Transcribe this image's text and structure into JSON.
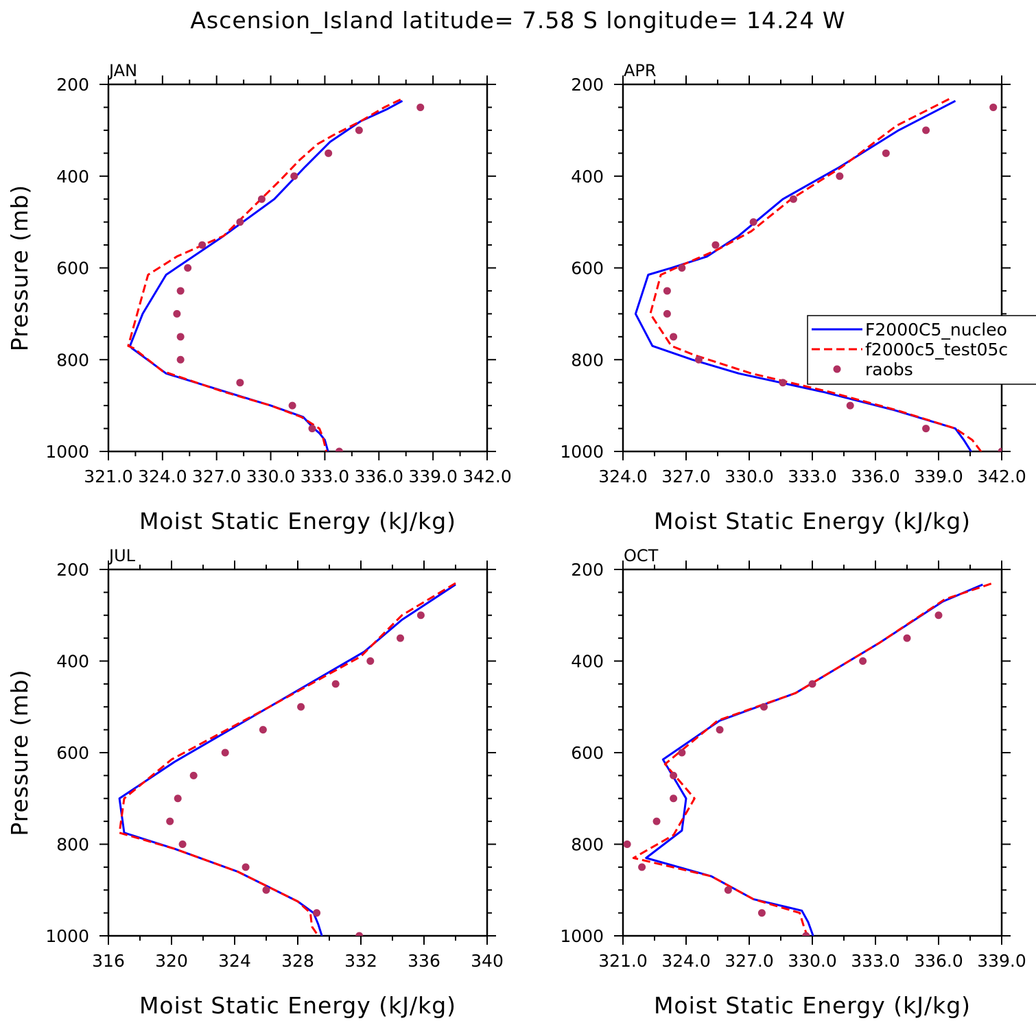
{
  "title": "Ascension_Island   latitude= 7.58 S longitude= 14.24 W",
  "colors": {
    "model1": "#0000ff",
    "model2": "#ff0000",
    "obs": "#b03060",
    "axis": "#000000"
  },
  "legend": {
    "items": [
      {
        "label": "F2000C5_nucleo",
        "style": "solid",
        "color": "#0000ff"
      },
      {
        "label": "f2000c5_test05c",
        "style": "dashed",
        "color": "#ff0000"
      },
      {
        "label": "raobs",
        "style": "marker",
        "color": "#b03060"
      }
    ]
  },
  "chart_data": [
    {
      "type": "line",
      "panel": "JAN",
      "title": "JAN",
      "xlabel": "Moist Static Energy (kJ/kg)",
      "ylabel": "Pressure (mb)",
      "xlim": [
        321.0,
        342.0
      ],
      "ylim": [
        1000,
        200
      ],
      "y_reversed": true,
      "x_ticks": [
        321.0,
        324.0,
        327.0,
        330.0,
        333.0,
        336.0,
        339.0,
        342.0
      ],
      "x_tick_labels": [
        "321.0",
        "324.0",
        "327.0",
        "330.0",
        "333.0",
        "336.0",
        "339.0",
        "342.0"
      ],
      "y_ticks": [
        200,
        400,
        600,
        800,
        1000
      ],
      "y_tick_labels": [
        "200",
        "400",
        "600",
        "800",
        "1000"
      ],
      "series": [
        {
          "name": "F2000C5_nucleo",
          "style": "solid",
          "x": [
            337.3,
            336.4,
            335.0,
            333.3,
            331.9,
            330.2,
            327.4,
            324.2,
            322.9,
            322.2,
            322.3,
            324.2,
            327.5,
            330.0,
            331.8,
            332.4,
            332.7,
            333.0,
            333.2
          ],
          "y": [
            236,
            255,
            280,
            325,
            380,
            450,
            530,
            615,
            700,
            770,
            775,
            830,
            870,
            900,
            925,
            950,
            960,
            975,
            1003
          ]
        },
        {
          "name": "f2000c5_test05c",
          "style": "dashed",
          "x": [
            337.2,
            336.3,
            335.0,
            333.5,
            332.6,
            331.6,
            330.5,
            327.4,
            324.8,
            324.0,
            323.2,
            322.1,
            322.4,
            324.0,
            327.4,
            330.0,
            331.7,
            332.7,
            332.9,
            333.1
          ],
          "y": [
            233,
            250,
            280,
            310,
            330,
            365,
            410,
            530,
            575,
            595,
            615,
            770,
            775,
            825,
            870,
            900,
            925,
            950,
            970,
            1003
          ]
        }
      ],
      "observations": {
        "name": "raobs",
        "x": [
          338.3,
          334.9,
          333.2,
          331.3,
          329.5,
          328.3,
          326.2,
          325.4,
          325.0,
          324.8,
          325.0,
          325.0,
          328.3,
          331.2,
          332.3,
          333.8
        ],
        "y": [
          250,
          300,
          350,
          400,
          450,
          500,
          550,
          600,
          650,
          700,
          750,
          800,
          850,
          900,
          950,
          1000
        ]
      }
    },
    {
      "type": "line",
      "panel": "APR",
      "title": "APR",
      "xlabel": "Moist Static Energy (kJ/kg)",
      "ylabel": "Pressure (mb)",
      "xlim": [
        324.0,
        342.0
      ],
      "ylim": [
        1000,
        200
      ],
      "y_reversed": true,
      "x_ticks": [
        324.0,
        327.0,
        330.0,
        333.0,
        336.0,
        339.0,
        342.0
      ],
      "x_tick_labels": [
        "324.0",
        "327.0",
        "330.0",
        "333.0",
        "336.0",
        "339.0",
        "342.0"
      ],
      "y_ticks": [
        200,
        400,
        600,
        800,
        1000
      ],
      "y_tick_labels": [
        "200",
        "400",
        "600",
        "800",
        "1000"
      ],
      "series": [
        {
          "name": "F2000C5_nucleo",
          "style": "solid",
          "x": [
            339.8,
            337.1,
            334.3,
            331.6,
            329.5,
            328.0,
            326.3,
            325.2,
            324.6,
            325.4,
            327.3,
            329.5,
            333.5,
            336.9,
            339.8,
            340.2,
            340.6
          ],
          "y": [
            236,
            300,
            380,
            450,
            530,
            575,
            600,
            615,
            700,
            770,
            800,
            830,
            870,
            910,
            950,
            975,
            1004
          ]
        },
        {
          "name": "f2000c5_test05c",
          "style": "dashed",
          "x": [
            339.5,
            337.0,
            334.4,
            332.0,
            330.1,
            328.5,
            327.0,
            325.8,
            325.3,
            326.3,
            327.4,
            330.1,
            333.8,
            337.0,
            339.8,
            340.6,
            341.1
          ],
          "y": [
            232,
            290,
            380,
            450,
            520,
            560,
            590,
            615,
            700,
            770,
            790,
            830,
            870,
            910,
            950,
            975,
            1005
          ]
        }
      ],
      "observations": {
        "name": "raobs",
        "x": [
          341.6,
          338.4,
          336.5,
          334.3,
          332.1,
          330.2,
          328.4,
          326.8,
          326.1,
          326.1,
          326.4,
          327.6,
          331.6,
          334.8,
          338.4,
          342.0
        ],
        "y": [
          250,
          300,
          350,
          400,
          450,
          500,
          550,
          600,
          650,
          700,
          750,
          800,
          850,
          900,
          950,
          1000
        ]
      }
    },
    {
      "type": "line",
      "panel": "JUL",
      "title": "JUL",
      "xlabel": "Moist Static Energy (kJ/kg)",
      "ylabel": "Pressure (mb)",
      "xlim": [
        316,
        340
      ],
      "ylim": [
        1000,
        200
      ],
      "y_reversed": true,
      "x_ticks": [
        316,
        320,
        324,
        328,
        332,
        336,
        340
      ],
      "x_tick_labels": [
        "316",
        "320",
        "324",
        "328",
        "332",
        "336",
        "340"
      ],
      "y_ticks": [
        200,
        400,
        600,
        800,
        1000
      ],
      "y_tick_labels": [
        "200",
        "400",
        "600",
        "800",
        "1000"
      ],
      "series": [
        {
          "name": "F2000C5_nucleo",
          "style": "solid",
          "x": [
            338.0,
            334.6,
            332.2,
            326.2,
            320.2,
            316.7,
            317.0,
            320.2,
            324.2,
            328.0,
            329.0,
            329.3,
            329.6
          ],
          "y": [
            233,
            310,
            380,
            500,
            620,
            700,
            775,
            810,
            860,
            925,
            950,
            975,
            1008
          ]
        },
        {
          "name": "f2000c5_test05c",
          "style": "dashed",
          "x": [
            338.0,
            334.6,
            332.0,
            326.2,
            320.0,
            317.0,
            316.7,
            320.2,
            324.2,
            328.0,
            328.8,
            328.9,
            329.4
          ],
          "y": [
            230,
            300,
            390,
            500,
            615,
            700,
            775,
            810,
            860,
            925,
            950,
            980,
            1005
          ]
        }
      ],
      "observations": {
        "name": "raobs",
        "x": [
          335.8,
          334.5,
          332.6,
          330.4,
          328.2,
          325.8,
          323.4,
          321.4,
          320.4,
          319.9,
          320.7,
          324.7,
          326.0,
          329.2,
          331.9
        ],
        "y": [
          300,
          350,
          400,
          450,
          500,
          550,
          600,
          650,
          700,
          750,
          800,
          850,
          900,
          950,
          1000
        ]
      }
    },
    {
      "type": "line",
      "panel": "OCT",
      "title": "OCT",
      "xlabel": "Moist Static Energy (kJ/kg)",
      "ylabel": "Pressure (mb)",
      "xlim": [
        321.0,
        339.0
      ],
      "ylim": [
        1000,
        200
      ],
      "y_reversed": true,
      "x_ticks": [
        321.0,
        324.0,
        327.0,
        330.0,
        333.0,
        336.0,
        339.0
      ],
      "x_tick_labels": [
        "321.0",
        "324.0",
        "327.0",
        "330.0",
        "333.0",
        "336.0",
        "339.0"
      ],
      "y_ticks": [
        200,
        400,
        600,
        800,
        1000
      ],
      "y_tick_labels": [
        "200",
        "400",
        "600",
        "800",
        "1000"
      ],
      "series": [
        {
          "name": "F2000C5_nucleo",
          "style": "solid",
          "x": [
            338.1,
            336.2,
            333.2,
            329.2,
            325.6,
            322.9,
            324.0,
            323.8,
            322.1,
            325.2,
            327.2,
            329.5,
            329.8,
            330.1
          ],
          "y": [
            233,
            270,
            360,
            470,
            530,
            615,
            700,
            770,
            830,
            870,
            920,
            945,
            970,
            1008
          ]
        },
        {
          "name": "f2000c5_test05c",
          "style": "dashed",
          "x": [
            338.5,
            336.3,
            333.2,
            329.2,
            325.5,
            323.0,
            324.4,
            323.4,
            321.5,
            325.2,
            327.2,
            329.4,
            329.6,
            329.8
          ],
          "y": [
            231,
            265,
            360,
            470,
            530,
            625,
            700,
            780,
            830,
            870,
            920,
            950,
            980,
            1005
          ]
        }
      ],
      "observations": {
        "name": "raobs",
        "x": [
          336.0,
          334.5,
          332.4,
          330.0,
          327.7,
          325.6,
          323.8,
          323.4,
          323.4,
          322.6,
          321.2,
          321.9,
          326.0,
          327.6,
          329.7
        ],
        "y": [
          300,
          350,
          400,
          450,
          500,
          550,
          600,
          650,
          700,
          750,
          800,
          850,
          900,
          950,
          1000
        ]
      }
    }
  ]
}
